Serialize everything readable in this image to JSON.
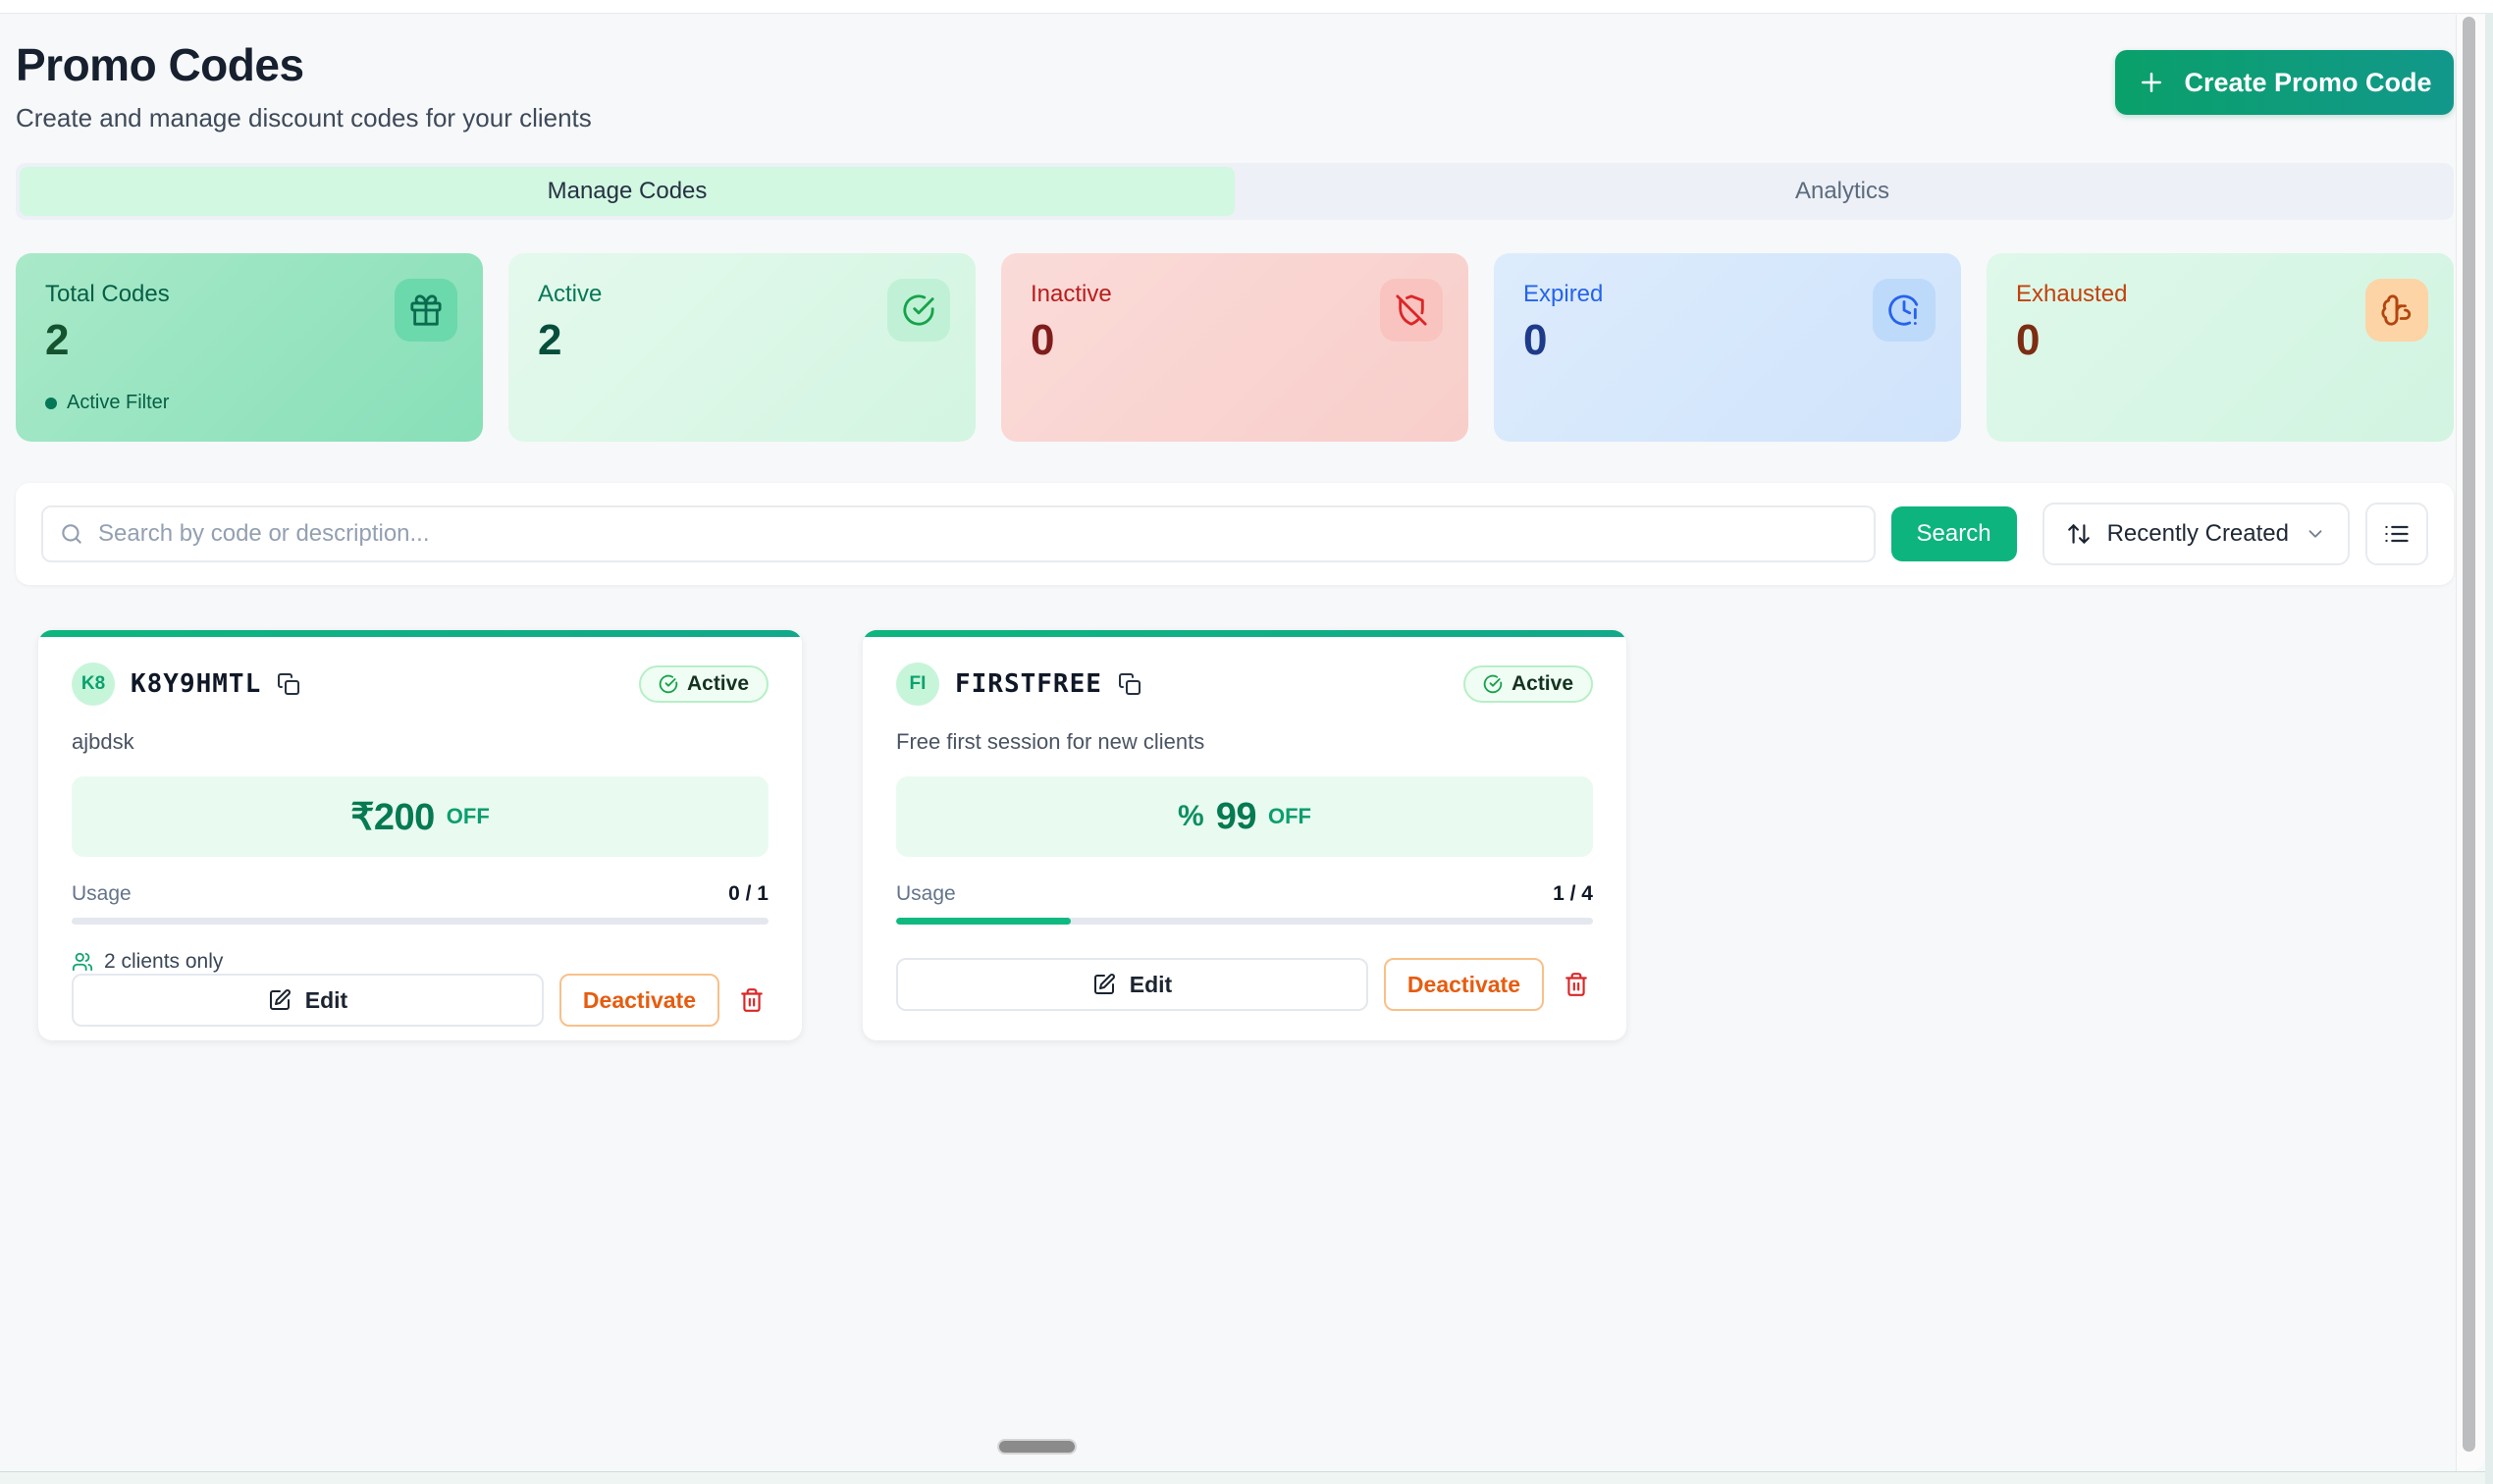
{
  "page": {
    "title": "Promo Codes",
    "subtitle": "Create and manage discount codes for your clients"
  },
  "header": {
    "create_button": "Create Promo Code"
  },
  "tabs": [
    {
      "label": "Manage Codes",
      "active": true
    },
    {
      "label": "Analytics",
      "active": false
    }
  ],
  "stats": [
    {
      "label": "Total Codes",
      "value": "2",
      "icon": "gift-icon",
      "note": "Active Filter"
    },
    {
      "label": "Active",
      "value": "2",
      "icon": "check-circle-icon"
    },
    {
      "label": "Inactive",
      "value": "0",
      "icon": "shield-off-icon"
    },
    {
      "label": "Expired",
      "value": "0",
      "icon": "clock-alert-icon"
    },
    {
      "label": "Exhausted",
      "value": "0",
      "icon": "brain-icon"
    }
  ],
  "toolbar": {
    "search_placeholder": "Search by code or description...",
    "search_button": "Search",
    "sort_label": "Recently Created"
  },
  "promo_cards": [
    {
      "initials": "K8",
      "code": "K8Y9HMTL",
      "status": "Active",
      "description": "ajbdsk",
      "discount_prefix": "",
      "discount_value": "₹200",
      "discount_suffix": "OFF",
      "usage_label": "Usage",
      "usage": "0 / 1",
      "usage_pct": 0,
      "clients_note": "2 clients only",
      "edit_label": "Edit",
      "deactivate_label": "Deactivate"
    },
    {
      "initials": "FI",
      "code": "FIRSTFREE",
      "status": "Active",
      "description": "Free first session for new clients",
      "discount_prefix": "%",
      "discount_value": "99",
      "discount_suffix": "OFF",
      "usage_label": "Usage",
      "usage": "1 / 4",
      "usage_pct": 25,
      "edit_label": "Edit",
      "deactivate_label": "Deactivate"
    }
  ],
  "colors": {
    "primary_green": "#10b981",
    "button_gradient_start": "#0aa06a",
    "button_gradient_end": "#12988b",
    "active_tab_bg": "#d2f8e2",
    "inactive_red": "#b91c1c",
    "expired_blue": "#2563eb",
    "exhausted_orange": "#c2410c",
    "deactivate_orange": "#e65c0f",
    "delete_red": "#dc2626"
  }
}
